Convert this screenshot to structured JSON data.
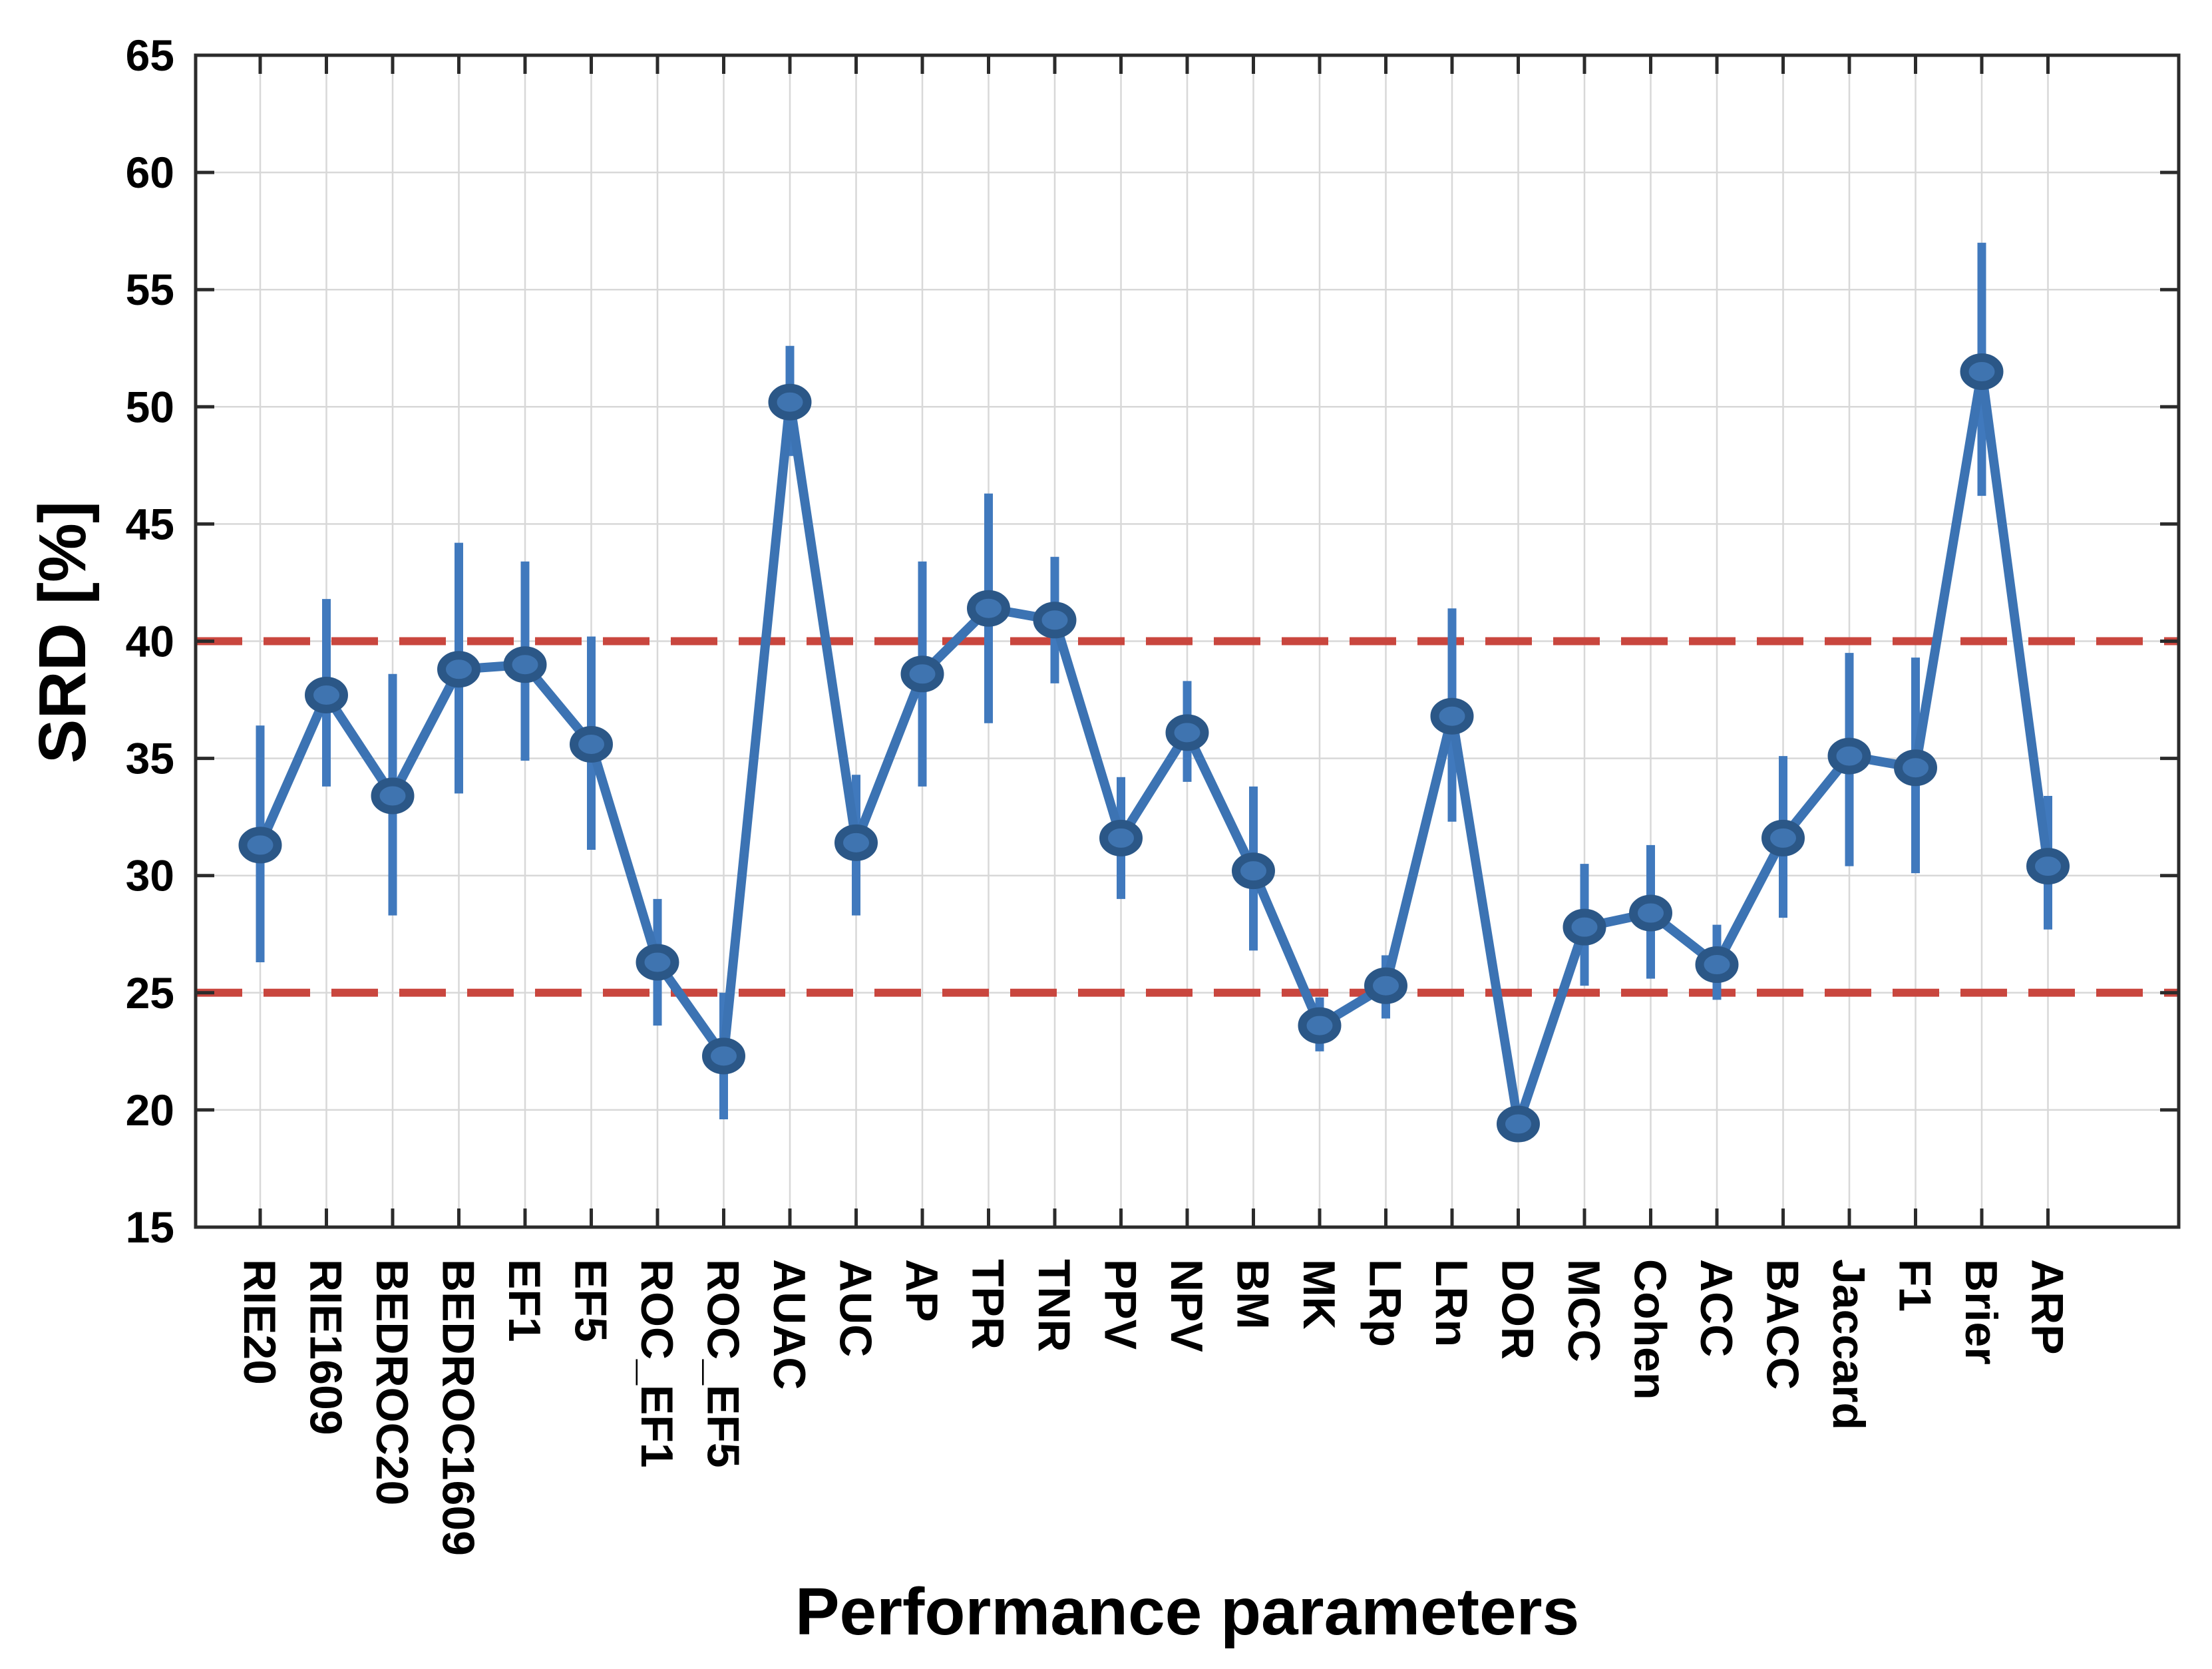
{
  "chart_data": {
    "type": "line",
    "title": "",
    "xlabel": "Performance parameters",
    "ylabel": "SRD [%]",
    "ylim": [
      15,
      65
    ],
    "ytick_step": 5,
    "ytick_labels": [
      "15",
      "20",
      "25",
      "30",
      "35",
      "40",
      "45",
      "50",
      "55",
      "60",
      "65"
    ],
    "grid": true,
    "legend": "none",
    "categories": [
      "RIE20",
      "RIE1609",
      "BEDROC20",
      "BEDROC1609",
      "EF1",
      "EF5",
      "ROC_EF1",
      "ROC_EF5",
      "AUAC",
      "AUC",
      "AP",
      "TPR",
      "TNR",
      "PPV",
      "NPV",
      "BM",
      "MK",
      "LRp",
      "LRn",
      "DOR",
      "MCC",
      "Cohen",
      "ACC",
      "BACC",
      "Jaccard",
      "F1",
      "Brier",
      "ARP"
    ],
    "series": [
      {
        "name": "SRD",
        "values": [
          31.3,
          37.7,
          33.4,
          38.8,
          39.0,
          35.6,
          26.3,
          22.3,
          50.2,
          31.4,
          38.6,
          41.4,
          40.9,
          31.6,
          36.1,
          30.2,
          23.6,
          25.3,
          36.8,
          19.4,
          27.8,
          28.4,
          26.2,
          31.6,
          35.1,
          34.6,
          51.5,
          30.4
        ],
        "err_lo": [
          26.3,
          33.8,
          28.3,
          33.5,
          34.9,
          31.1,
          23.6,
          19.6,
          47.9,
          28.3,
          33.8,
          36.5,
          38.2,
          29.0,
          34.0,
          26.8,
          22.5,
          23.9,
          32.3,
          19.4,
          25.3,
          25.6,
          24.7,
          28.2,
          30.4,
          30.1,
          46.2,
          27.7
        ],
        "err_hi": [
          36.4,
          41.8,
          38.6,
          44.2,
          43.4,
          40.2,
          29.0,
          25.0,
          52.6,
          34.3,
          43.4,
          46.3,
          43.6,
          34.2,
          38.3,
          33.8,
          24.8,
          26.6,
          41.4,
          19.4,
          30.5,
          31.3,
          27.9,
          35.1,
          39.5,
          39.3,
          57.0,
          33.4
        ]
      }
    ],
    "reference_lines": [
      {
        "y": 40,
        "style": "dashed"
      },
      {
        "y": 25,
        "style": "dashed"
      }
    ],
    "colors": {
      "line": "#3C73B3",
      "marker_fill": "#3F74B0",
      "marker_edge": "#2B5787",
      "error_bar": "#4079BD",
      "reference": "#C9463E",
      "grid": "#D8D8D8",
      "axis": "#2B2B2B",
      "text": "#000000",
      "background": "#FFFFFF"
    }
  }
}
